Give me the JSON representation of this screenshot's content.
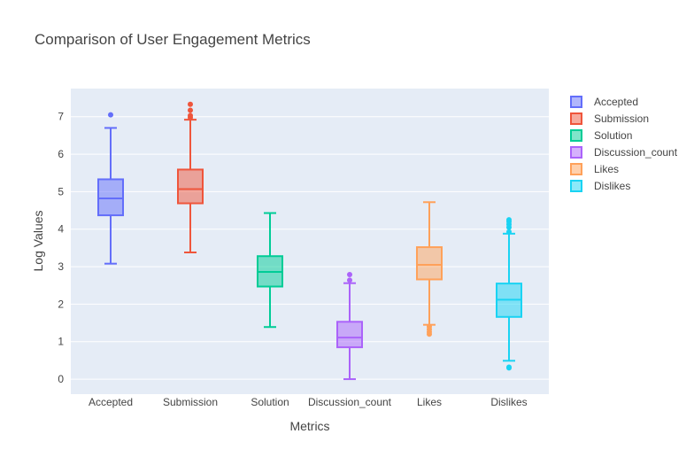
{
  "chart_data": {
    "type": "box",
    "title": "Comparison of User Engagement Metrics",
    "xlabel": "Metrics",
    "ylabel": "Log Values",
    "ylim": [
      -0.4,
      7.75
    ],
    "yticks": [
      0,
      1,
      2,
      3,
      4,
      5,
      6,
      7
    ],
    "grid": true,
    "legend_position": "top-right",
    "categories": [
      "Accepted",
      "Submission",
      "Solution",
      "Discussion_count",
      "Likes",
      "Dislikes"
    ],
    "series": [
      {
        "name": "Accepted",
        "color": "#636efa",
        "lowerfence": 3.08,
        "q1": 4.37,
        "median": 4.82,
        "q3": 5.33,
        "upperfence": 6.7,
        "outliers": [
          7.05
        ]
      },
      {
        "name": "Submission",
        "color": "#EF553B",
        "lowerfence": 3.38,
        "q1": 4.69,
        "median": 5.07,
        "q3": 5.59,
        "upperfence": 6.92,
        "outliers": [
          6.98,
          7.03,
          7.17,
          7.33
        ]
      },
      {
        "name": "Solution",
        "color": "#00cc96",
        "lowerfence": 1.39,
        "q1": 2.47,
        "median": 2.86,
        "q3": 3.28,
        "upperfence": 4.43,
        "outliers": []
      },
      {
        "name": "Discussion_count",
        "color": "#ab63fa",
        "lowerfence": 0,
        "q1": 0.85,
        "median": 1.11,
        "q3": 1.53,
        "upperfence": 2.56,
        "outliers": [
          2.64,
          2.79
        ]
      },
      {
        "name": "Likes",
        "color": "#FFA15A",
        "lowerfence": 1.45,
        "q1": 2.66,
        "median": 3.05,
        "q3": 3.52,
        "upperfence": 4.72,
        "outliers": [
          1.2,
          1.26,
          1.33,
          1.4
        ]
      },
      {
        "name": "Dislikes",
        "color": "#19d3f3",
        "lowerfence": 0.49,
        "q1": 1.66,
        "median": 2.12,
        "q3": 2.55,
        "upperfence": 3.88,
        "outliers": [
          0.3,
          0.32,
          3.93,
          4.05,
          4.13,
          4.2,
          4.25
        ]
      }
    ]
  }
}
